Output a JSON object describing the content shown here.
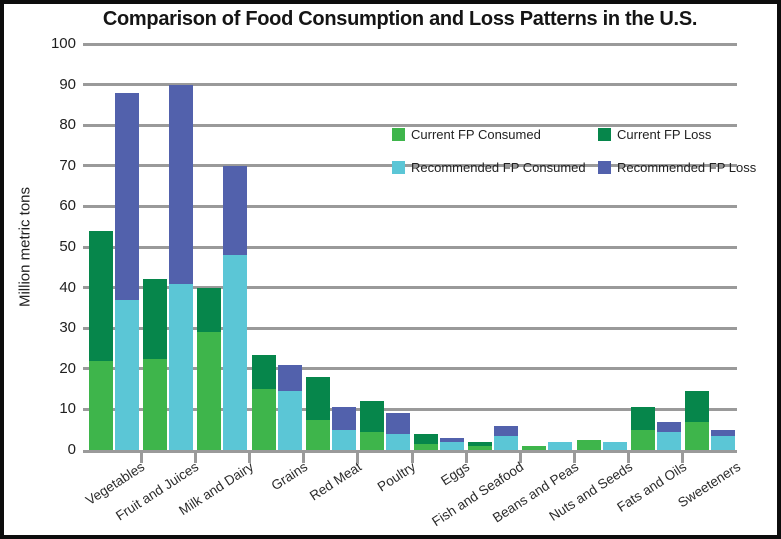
{
  "frame": {
    "border_color": "#0d0d0d",
    "background": "#ffffff"
  },
  "chart_data": {
    "type": "bar",
    "stacked": true,
    "bar_grouping": "two stacked bars per category: current pattern and recommended pattern",
    "title": "Comparison of Food Consumption and Loss Patterns in the U.S.",
    "xlabel": "",
    "ylabel": "Million metric tons",
    "ylim": [
      0,
      100
    ],
    "ytick_step": 10,
    "yticks": [
      0,
      10,
      20,
      30,
      40,
      50,
      60,
      70,
      80,
      90,
      100
    ],
    "grid": "horizontal gridlines on, gray",
    "grid_color": "#9a9a9a",
    "text_color": "#1f1f1f",
    "legend_position": "inside upper-right, 2 columns x 2 rows",
    "categories": [
      "Vegetables",
      "Fruit and Juices",
      "Milk and Dairy",
      "Grains",
      "Red Meat",
      "Poultry",
      "Eggs",
      "Fish and Seafood",
      "Beans and Peas",
      "Nuts and Seeds",
      "Fats and Oils",
      "Sweeteners"
    ],
    "series": [
      {
        "name": "Current FP Consumed",
        "bar": "current",
        "stack_order": "bottom",
        "color": "#3eb54b",
        "values": [
          22,
          22.5,
          29,
          15,
          7.5,
          4.5,
          1.5,
          1,
          1,
          2.4,
          5,
          7
        ]
      },
      {
        "name": "Current FP Loss",
        "bar": "current",
        "stack_order": "top",
        "color": "#06864b",
        "values": [
          32,
          19.5,
          11,
          8.5,
          10.5,
          7.5,
          2.5,
          1,
          0,
          0,
          5.5,
          7.5
        ]
      },
      {
        "name": "Recommended FP Consumed",
        "bar": "recommended",
        "stack_order": "bottom",
        "color": "#5bc6d6",
        "values": [
          37,
          41,
          48,
          14.5,
          5,
          4,
          2,
          3.5,
          2,
          2,
          4.5,
          3.5
        ]
      },
      {
        "name": "Recommended FP Loss",
        "bar": "recommended",
        "stack_order": "top",
        "color": "#5261ac",
        "values": [
          51,
          49,
          22,
          6.5,
          5.5,
          5,
          1,
          2.5,
          0,
          0,
          2.5,
          1.5
        ]
      }
    ],
    "bar_totals_current": [
      54,
      42,
      40,
      23.5,
      18,
      12,
      4,
      2,
      1,
      2.4,
      10.5,
      14.5
    ],
    "bar_totals_recommended": [
      88,
      90,
      70,
      21,
      10.5,
      9,
      3,
      6,
      2,
      2,
      7,
      5
    ]
  }
}
